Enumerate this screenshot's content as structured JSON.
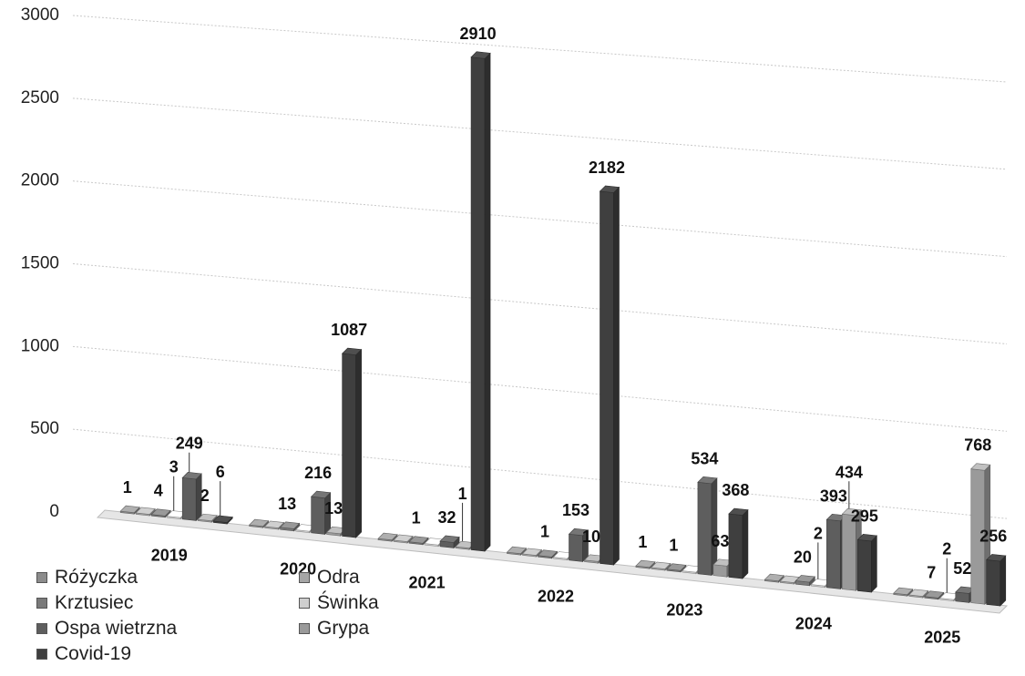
{
  "chart_data": {
    "type": "bar",
    "categories": [
      "2019",
      "2020",
      "2021",
      "2022",
      "2023",
      "2024",
      "2025"
    ],
    "series": [
      {
        "name": "Różyczka",
        "values": [
          1,
          0,
          0,
          0,
          1,
          0,
          0
        ]
      },
      {
        "name": "Odra",
        "values": [
          0,
          0,
          0,
          0,
          0,
          0,
          0
        ]
      },
      {
        "name": "Krztusiec",
        "values": [
          4,
          13,
          1,
          1,
          1,
          20,
          7
        ]
      },
      {
        "name": "Świnka",
        "values": [
          3,
          0,
          0,
          0,
          0,
          2,
          2
        ]
      },
      {
        "name": "Ospa wietrzna",
        "values": [
          249,
          216,
          32,
          153,
          534,
          393,
          52
        ]
      },
      {
        "name": "Grypa",
        "values": [
          2,
          13,
          1,
          10,
          63,
          434,
          768
        ]
      },
      {
        "name": "Covid-19",
        "values": [
          6,
          1087,
          2910,
          2182,
          368,
          295,
          256
        ]
      }
    ],
    "ylim": [
      0,
      3000
    ],
    "yticks": [
      0,
      500,
      1000,
      1500,
      2000,
      2500,
      3000
    ],
    "grid": true,
    "legend_position": "bottom-left",
    "series_colors": [
      "#8c8c8c",
      "#a6a6a6",
      "#7a7a7a",
      "#cfcfcf",
      "#5e5e5e",
      "#9a9a9a",
      "#3f3f3f"
    ]
  }
}
